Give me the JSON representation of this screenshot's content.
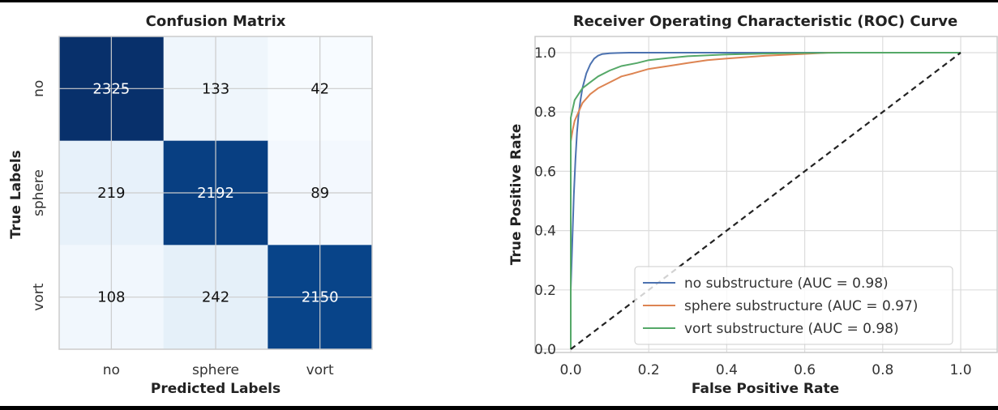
{
  "chart_data": [
    {
      "type": "heatmap",
      "title": "Confusion Matrix",
      "xlabel": "Predicted Labels",
      "ylabel": "True Labels",
      "x_categories": [
        "no",
        "sphere",
        "vort"
      ],
      "y_categories": [
        "no",
        "sphere",
        "vort"
      ],
      "values": [
        [
          2325,
          133,
          42
        ],
        [
          219,
          2192,
          89
        ],
        [
          108,
          242,
          2150
        ]
      ],
      "colormap": "Blues",
      "grid": true
    },
    {
      "type": "line",
      "title": "Receiver Operating Characteristic (ROC) Curve",
      "xlabel": "False Positive Rate",
      "ylabel": "True Positive Rate",
      "xlim": [
        0,
        1
      ],
      "ylim": [
        0,
        1
      ],
      "xticks": [
        "0.0",
        "0.2",
        "0.4",
        "0.6",
        "0.8",
        "1.0"
      ],
      "yticks": [
        "0.0",
        "0.2",
        "0.4",
        "0.6",
        "0.8",
        "1.0"
      ],
      "grid": true,
      "legend_position": "lower-right",
      "series": [
        {
          "name": "no substructure (AUC = 0.98)",
          "color": "#4c72b0",
          "x": [
            0,
            0,
            0.004,
            0.008,
            0.012,
            0.016,
            0.02,
            0.025,
            0.03,
            0.04,
            0.05,
            0.06,
            0.07,
            0.08,
            0.1,
            0.12,
            0.15,
            0.2,
            0.3,
            0.5,
            0.7,
            1.0
          ],
          "y": [
            0,
            0.2,
            0.36,
            0.52,
            0.64,
            0.73,
            0.79,
            0.84,
            0.88,
            0.93,
            0.96,
            0.98,
            0.99,
            0.995,
            0.998,
            0.999,
            1.0,
            1.0,
            1.0,
            1.0,
            1.0,
            1.0
          ]
        },
        {
          "name": "sphere substructure (AUC = 0.97)",
          "color": "#dd8452",
          "x": [
            0,
            0,
            0.005,
            0.01,
            0.02,
            0.03,
            0.05,
            0.07,
            0.1,
            0.13,
            0.16,
            0.2,
            0.25,
            0.3,
            0.35,
            0.4,
            0.45,
            0.5,
            0.55,
            0.6,
            0.66,
            0.8,
            1.0
          ],
          "y": [
            0,
            0.7,
            0.74,
            0.77,
            0.8,
            0.83,
            0.86,
            0.88,
            0.9,
            0.92,
            0.93,
            0.945,
            0.955,
            0.965,
            0.975,
            0.98,
            0.985,
            0.99,
            0.993,
            0.996,
            1.0,
            1.0,
            1.0
          ]
        },
        {
          "name": "vort substructure (AUC = 0.98)",
          "color": "#55a868",
          "x": [
            0,
            0,
            0.005,
            0.01,
            0.02,
            0.03,
            0.05,
            0.07,
            0.1,
            0.13,
            0.17,
            0.2,
            0.25,
            0.3,
            0.4,
            0.5,
            0.6,
            0.7,
            1.0
          ],
          "y": [
            0,
            0.78,
            0.81,
            0.84,
            0.86,
            0.88,
            0.9,
            0.92,
            0.94,
            0.955,
            0.965,
            0.975,
            0.982,
            0.988,
            0.994,
            0.997,
            0.999,
            1.0,
            1.0
          ]
        },
        {
          "color": "#222222",
          "style": "dashed",
          "x": [
            0,
            1
          ],
          "y": [
            0,
            1
          ]
        }
      ]
    }
  ]
}
